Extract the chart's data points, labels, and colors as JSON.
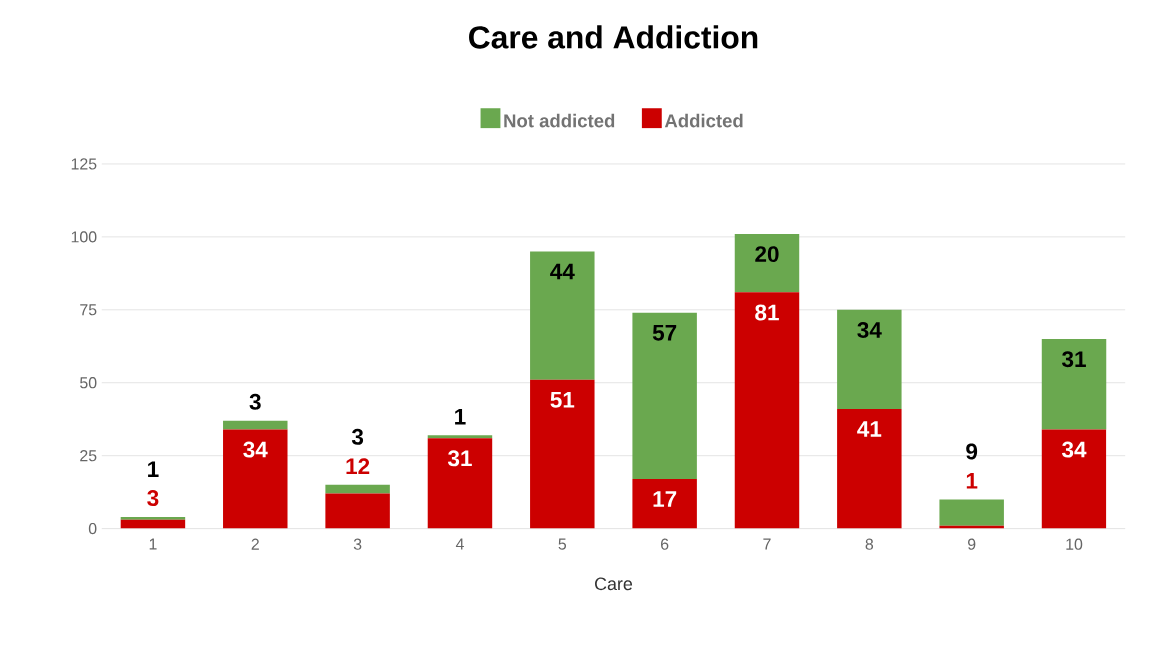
{
  "chart_data": {
    "type": "bar",
    "title": "Care and Addiction",
    "xlabel": "Care",
    "categories": [
      "1",
      "2",
      "3",
      "4",
      "5",
      "6",
      "7",
      "8",
      "9",
      "10"
    ],
    "series": [
      {
        "name": "Addicted",
        "color": "#cc0000",
        "values": [
          3,
          34,
          12,
          31,
          51,
          17,
          81,
          41,
          1,
          34
        ]
      },
      {
        "name": "Not addicted",
        "color": "#6aa84f",
        "values": [
          1,
          3,
          3,
          1,
          44,
          57,
          20,
          34,
          9,
          31
        ]
      }
    ],
    "stacked": true,
    "ylim": [
      0,
      125
    ],
    "yticks": [
      0,
      25,
      50,
      75,
      100,
      125
    ],
    "grid": "y",
    "legend": "top",
    "data_labels": true
  }
}
